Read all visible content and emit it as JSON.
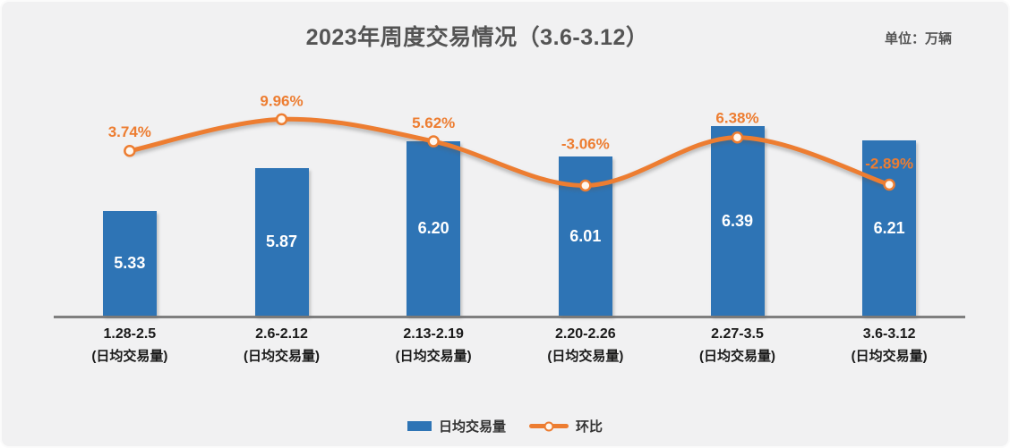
{
  "header": {
    "title": "2023年周度交易情况（3.6-3.12）",
    "unit_label": "单位：万辆"
  },
  "colors": {
    "bar": "#2E74B5",
    "line": "#ED7D31",
    "percent_label": "#ED7D31",
    "bar_label": "#FFFFFF",
    "title_text": "#545454",
    "category_text": "#1A1A1A",
    "axis_line": "#7F7F7F",
    "background": "#F1F1F2"
  },
  "chart_data": {
    "type": "combo bar+line",
    "categories": [
      "1.28-2.5",
      "2.6-2.12",
      "2.13-2.19",
      "2.20-2.26",
      "2.27-3.5",
      "3.6-3.12"
    ],
    "category_sublabel": "(日均交易量)",
    "series": [
      {
        "name": "日均交易量",
        "type": "bar",
        "axis": "primary",
        "values": [
          5.33,
          5.87,
          6.2,
          6.01,
          6.39,
          6.21
        ],
        "value_labels": [
          "5.33",
          "5.87",
          "6.20",
          "6.01",
          "6.39",
          "6.21"
        ]
      },
      {
        "name": "环比",
        "type": "line",
        "axis": "secondary",
        "values": [
          3.74,
          9.96,
          5.62,
          -3.06,
          6.38,
          -2.89
        ],
        "value_labels": [
          "3.74%",
          "9.96%",
          "5.62%",
          "-3.06%",
          "6.38%",
          "-2.89%"
        ]
      }
    ],
    "ylim_primary": [
      4,
      7
    ],
    "ylim_secondary_percent": [
      -28.8,
      18.1
    ],
    "grid": false,
    "legend_position": "bottom"
  }
}
